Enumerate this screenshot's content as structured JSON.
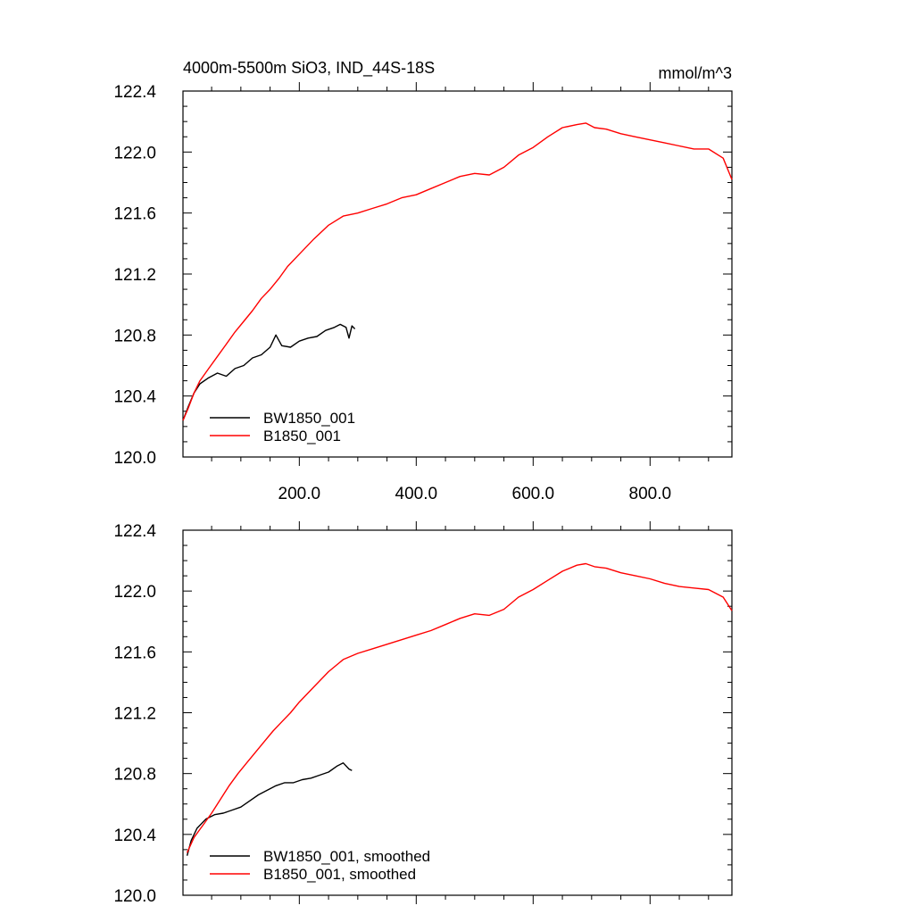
{
  "figure": {
    "title_left": "4000m-5500m SiO3, IND_44S-18S",
    "title_right": "mmol/m^3"
  },
  "chart_data": [
    {
      "type": "line",
      "title": "4000m-5500m SiO3, IND_44S-18S",
      "units": "mmol/m^3",
      "xlim": [
        1,
        940
      ],
      "ylim": [
        120.0,
        122.4
      ],
      "x_ticks": [
        200,
        400,
        600,
        800
      ],
      "x_tick_labels": [
        "200.0",
        "400.0",
        "600.0",
        "800.0"
      ],
      "y_ticks": [
        120.0,
        120.4,
        120.8,
        121.2,
        121.6,
        122.0,
        122.4
      ],
      "y_tick_labels": [
        "120.0",
        "120.4",
        "120.8",
        "121.2",
        "121.6",
        "122.0",
        "122.4"
      ],
      "legend_position": "bottom-left",
      "series": [
        {
          "name": "BW1850_001",
          "color": "#000000",
          "x": [
            1,
            10,
            20,
            30,
            45,
            60,
            75,
            90,
            105,
            120,
            135,
            150,
            160,
            170,
            185,
            200,
            215,
            230,
            245,
            260,
            270,
            280,
            285,
            290,
            295
          ],
          "y": [
            120.24,
            120.33,
            120.42,
            120.48,
            120.52,
            120.55,
            120.53,
            120.58,
            120.6,
            120.65,
            120.67,
            120.72,
            120.8,
            120.73,
            120.72,
            120.76,
            120.78,
            120.79,
            120.83,
            120.85,
            120.87,
            120.85,
            120.78,
            120.86,
            120.84
          ]
        },
        {
          "name": "B1850_001",
          "color": "#ff0000",
          "x": [
            1,
            10,
            20,
            30,
            45,
            60,
            75,
            90,
            105,
            120,
            135,
            150,
            165,
            180,
            200,
            225,
            250,
            275,
            300,
            325,
            350,
            375,
            400,
            425,
            450,
            475,
            500,
            525,
            550,
            575,
            600,
            625,
            650,
            675,
            690,
            705,
            725,
            750,
            775,
            800,
            825,
            850,
            875,
            900,
            925,
            940
          ],
          "y": [
            120.24,
            120.32,
            120.42,
            120.5,
            120.58,
            120.66,
            120.74,
            120.82,
            120.89,
            120.96,
            121.04,
            121.1,
            121.17,
            121.25,
            121.33,
            121.43,
            121.52,
            121.58,
            121.6,
            121.63,
            121.66,
            121.7,
            121.72,
            121.76,
            121.8,
            121.84,
            121.86,
            121.85,
            121.9,
            121.98,
            122.03,
            122.1,
            122.16,
            122.18,
            122.19,
            122.16,
            122.15,
            122.12,
            122.1,
            122.08,
            122.06,
            122.04,
            122.02,
            122.02,
            121.96,
            121.82
          ]
        }
      ]
    },
    {
      "type": "line",
      "xlim": [
        1,
        940
      ],
      "ylim": [
        120.0,
        122.4
      ],
      "y_ticks": [
        120.0,
        120.4,
        120.8,
        121.2,
        121.6,
        122.0,
        122.4
      ],
      "y_tick_labels": [
        "120.0",
        "120.4",
        "120.8",
        "121.2",
        "121.6",
        "122.0",
        "122.4"
      ],
      "x_ticks": [
        200,
        400,
        600,
        800
      ],
      "legend_position": "bottom-left",
      "series": [
        {
          "name": "BW1850_001, smoothed",
          "color": "#000000",
          "x": [
            8,
            15,
            25,
            40,
            55,
            70,
            85,
            100,
            115,
            130,
            145,
            160,
            175,
            190,
            205,
            220,
            235,
            250,
            265,
            275,
            285,
            290
          ],
          "y": [
            120.26,
            120.36,
            120.44,
            120.5,
            120.53,
            120.54,
            120.56,
            120.58,
            120.62,
            120.66,
            120.69,
            120.72,
            120.74,
            120.74,
            120.76,
            120.77,
            120.79,
            120.81,
            120.85,
            120.87,
            120.83,
            120.82
          ]
        },
        {
          "name": "B1850_001, smoothed",
          "color": "#ff0000",
          "x": [
            8,
            20,
            35,
            50,
            65,
            80,
            95,
            110,
            125,
            140,
            155,
            170,
            185,
            200,
            225,
            250,
            275,
            300,
            325,
            350,
            375,
            400,
            425,
            450,
            475,
            500,
            525,
            550,
            575,
            600,
            625,
            650,
            675,
            690,
            705,
            725,
            750,
            775,
            800,
            825,
            850,
            875,
            900,
            925,
            940
          ],
          "y": [
            120.28,
            120.38,
            120.46,
            120.54,
            120.63,
            120.72,
            120.8,
            120.87,
            120.94,
            121.01,
            121.08,
            121.14,
            121.2,
            121.27,
            121.37,
            121.47,
            121.55,
            121.59,
            121.62,
            121.65,
            121.68,
            121.71,
            121.74,
            121.78,
            121.82,
            121.85,
            121.84,
            121.88,
            121.96,
            122.01,
            122.07,
            122.13,
            122.17,
            122.18,
            122.16,
            122.15,
            122.12,
            122.1,
            122.08,
            122.05,
            122.03,
            122.02,
            122.01,
            121.96,
            121.87
          ]
        }
      ]
    }
  ]
}
